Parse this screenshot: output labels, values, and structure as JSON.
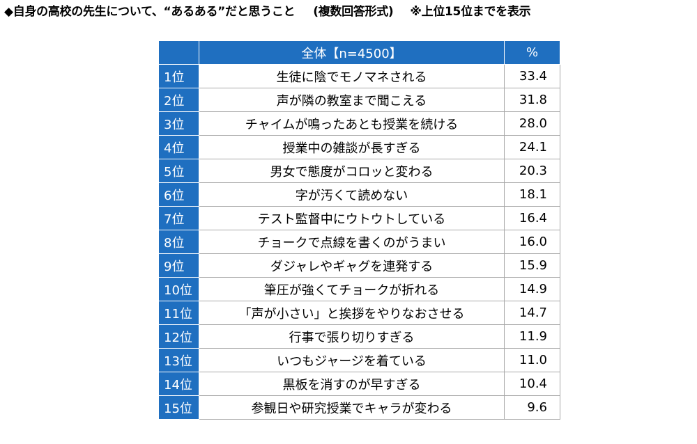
{
  "title": {
    "main": "◆自身の高校の先生について、“あるある”だと思うこと",
    "note": "(複数回答形式)",
    "scope": "※上位15位までを表示"
  },
  "table": {
    "header": {
      "rank": "",
      "item": "全体【n=4500】",
      "pct": "%"
    },
    "rows": [
      {
        "rank": "1位",
        "item": "生徒に陰でモノマネされる",
        "pct": "33.4"
      },
      {
        "rank": "2位",
        "item": "声が隣の教室まで聞こえる",
        "pct": "31.8"
      },
      {
        "rank": "3位",
        "item": "チャイムが鳴ったあとも授業を続ける",
        "pct": "28.0"
      },
      {
        "rank": "4位",
        "item": "授業中の雑談が長すぎる",
        "pct": "24.1"
      },
      {
        "rank": "5位",
        "item": "男女で態度がコロッと変わる",
        "pct": "20.3"
      },
      {
        "rank": "6位",
        "item": "字が汚くて読めない",
        "pct": "18.1"
      },
      {
        "rank": "7位",
        "item": "テスト監督中にウトウトしている",
        "pct": "16.4"
      },
      {
        "rank": "8位",
        "item": "チョークで点線を書くのがうまい",
        "pct": "16.0"
      },
      {
        "rank": "9位",
        "item": "ダジャレやギャグを連発する",
        "pct": "15.9"
      },
      {
        "rank": "10位",
        "item": "筆圧が強くてチョークが折れる",
        "pct": "14.9"
      },
      {
        "rank": "11位",
        "item": "「声が小さい」と挨拶をやりなおさせる",
        "pct": "14.7"
      },
      {
        "rank": "12位",
        "item": "行事で張り切りすぎる",
        "pct": "11.9"
      },
      {
        "rank": "13位",
        "item": "いつもジャージを着ている",
        "pct": "11.0"
      },
      {
        "rank": "14位",
        "item": "黒板を消すのが早すぎる",
        "pct": "10.4"
      },
      {
        "rank": "15位",
        "item": "参観日や研究授業でキャラが変わる",
        "pct": "9.6"
      }
    ]
  },
  "colors": {
    "header_bg": "#1f6fc0",
    "header_text": "#ffffff",
    "cell_border": "#a7a7a7"
  }
}
